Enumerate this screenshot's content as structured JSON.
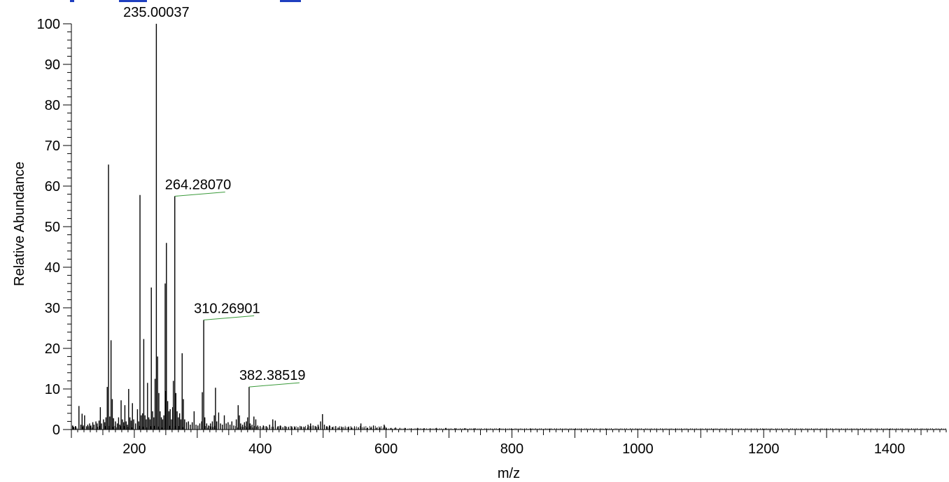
{
  "chart_data": {
    "type": "bar",
    "xlabel": "m/z",
    "ylabel": "Relative Abundance",
    "xlim": [
      100,
      1490
    ],
    "ylim": [
      0,
      100
    ],
    "x_ticks": [
      200,
      400,
      600,
      800,
      1000,
      1200,
      1400
    ],
    "y_ticks": [
      0,
      10,
      20,
      30,
      40,
      50,
      60,
      70,
      80,
      90,
      100
    ],
    "grid": false,
    "peaks": [
      [
        102,
        1.0
      ],
      [
        104,
        0.6
      ],
      [
        107,
        0.8
      ],
      [
        112,
        5.8
      ],
      [
        115,
        1.2
      ],
      [
        117,
        3.9
      ],
      [
        119,
        1.0
      ],
      [
        121,
        3.5
      ],
      [
        124,
        0.8
      ],
      [
        126,
        1.2
      ],
      [
        129,
        1.5
      ],
      [
        131,
        1.0
      ],
      [
        134,
        1.8
      ],
      [
        136,
        1.2
      ],
      [
        139,
        2.0
      ],
      [
        141,
        1.5
      ],
      [
        144,
        2.2
      ],
      [
        146,
        5.5
      ],
      [
        148,
        1.5
      ],
      [
        151,
        2.5
      ],
      [
        153,
        1.8
      ],
      [
        155,
        3.0
      ],
      [
        157,
        10.5
      ],
      [
        159,
        65.3
      ],
      [
        161,
        3.2
      ],
      [
        163,
        22.0
      ],
      [
        165,
        7.5
      ],
      [
        167,
        2.8
      ],
      [
        170,
        2.0
      ],
      [
        173,
        1.5
      ],
      [
        175,
        3.0
      ],
      [
        177,
        1.2
      ],
      [
        179,
        7.2
      ],
      [
        181,
        2.5
      ],
      [
        183,
        1.8
      ],
      [
        185,
        6.0
      ],
      [
        187,
        2.0
      ],
      [
        189,
        1.2
      ],
      [
        191,
        10.0
      ],
      [
        193,
        3.0
      ],
      [
        195,
        2.2
      ],
      [
        197,
        6.5
      ],
      [
        199,
        2.5
      ],
      [
        202,
        1.5
      ],
      [
        205,
        5.0
      ],
      [
        207,
        2.0
      ],
      [
        209,
        57.8
      ],
      [
        211,
        3.5
      ],
      [
        213,
        4.0
      ],
      [
        215,
        22.3
      ],
      [
        217,
        3.5
      ],
      [
        219,
        2.5
      ],
      [
        221,
        11.5
      ],
      [
        223,
        3.0
      ],
      [
        225,
        2.5
      ],
      [
        227,
        35.0
      ],
      [
        229,
        4.5
      ],
      [
        231,
        3.0
      ],
      [
        233,
        12.5
      ],
      [
        235.00037,
        100.0
      ],
      [
        237,
        18.0
      ],
      [
        239,
        9.0
      ],
      [
        241,
        4.5
      ],
      [
        243,
        3.0
      ],
      [
        245,
        2.5
      ],
      [
        247,
        3.5
      ],
      [
        249,
        36.0
      ],
      [
        250,
        9.5
      ],
      [
        251,
        46.0
      ],
      [
        253,
        7.0
      ],
      [
        255,
        4.5
      ],
      [
        257,
        5.0
      ],
      [
        259,
        2.5
      ],
      [
        261,
        5.5
      ],
      [
        262,
        12.0
      ],
      [
        264.2807,
        57.5
      ],
      [
        266,
        9.0
      ],
      [
        268,
        4.5
      ],
      [
        270,
        3.0
      ],
      [
        272,
        4.0
      ],
      [
        274,
        2.5
      ],
      [
        276,
        18.8
      ],
      [
        278,
        7.5
      ],
      [
        280,
        2.5
      ],
      [
        283,
        1.8
      ],
      [
        286,
        2.0
      ],
      [
        289,
        1.2
      ],
      [
        292,
        1.8
      ],
      [
        295,
        4.5
      ],
      [
        298,
        1.2
      ],
      [
        301,
        1.0
      ],
      [
        304,
        1.5
      ],
      [
        307,
        2.0
      ],
      [
        308,
        9.2
      ],
      [
        310.26901,
        27.0
      ],
      [
        312,
        3.0
      ],
      [
        315,
        1.5
      ],
      [
        318,
        1.0
      ],
      [
        321,
        1.5
      ],
      [
        324,
        2.0
      ],
      [
        327,
        3.5
      ],
      [
        329,
        10.3
      ],
      [
        331,
        2.0
      ],
      [
        334,
        4.2
      ],
      [
        337,
        1.5
      ],
      [
        340,
        1.2
      ],
      [
        343,
        3.5
      ],
      [
        346,
        1.5
      ],
      [
        349,
        1.8
      ],
      [
        352,
        1.2
      ],
      [
        355,
        2.0
      ],
      [
        358,
        1.0
      ],
      [
        362,
        2.5
      ],
      [
        365,
        6.0
      ],
      [
        367,
        3.5
      ],
      [
        369,
        1.5
      ],
      [
        372,
        1.2
      ],
      [
        375,
        1.8
      ],
      [
        378,
        2.0
      ],
      [
        380,
        3.0
      ],
      [
        382.38519,
        10.5
      ],
      [
        384,
        1.5
      ],
      [
        387,
        1.2
      ],
      [
        390,
        3.2
      ],
      [
        393,
        2.5
      ],
      [
        396,
        1.0
      ],
      [
        400,
        0.8
      ],
      [
        405,
        1.0
      ],
      [
        410,
        0.8
      ],
      [
        415,
        1.2
      ],
      [
        420,
        2.5
      ],
      [
        424,
        2.2
      ],
      [
        428,
        0.8
      ],
      [
        432,
        1.0
      ],
      [
        436,
        0.6
      ],
      [
        440,
        0.8
      ],
      [
        445,
        0.6
      ],
      [
        450,
        0.8
      ],
      [
        455,
        0.6
      ],
      [
        460,
        0.6
      ],
      [
        465,
        0.8
      ],
      [
        470,
        0.6
      ],
      [
        476,
        1.2
      ],
      [
        480,
        1.5
      ],
      [
        484,
        1.0
      ],
      [
        488,
        0.8
      ],
      [
        492,
        1.2
      ],
      [
        496,
        2.0
      ],
      [
        499,
        3.8
      ],
      [
        502,
        1.2
      ],
      [
        506,
        0.8
      ],
      [
        510,
        1.0
      ],
      [
        515,
        0.6
      ],
      [
        520,
        0.8
      ],
      [
        525,
        0.5
      ],
      [
        530,
        0.6
      ],
      [
        535,
        0.5
      ],
      [
        540,
        0.6
      ],
      [
        545,
        0.5
      ],
      [
        550,
        0.6
      ],
      [
        556,
        0.5
      ],
      [
        560,
        1.5
      ],
      [
        565,
        0.5
      ],
      [
        570,
        0.4
      ],
      [
        576,
        0.5
      ],
      [
        580,
        1.0
      ],
      [
        585,
        0.4
      ],
      [
        590,
        0.5
      ],
      [
        597,
        1.2
      ],
      [
        600,
        0.5
      ],
      [
        608,
        0.4
      ],
      [
        615,
        0.5
      ],
      [
        622,
        0.4
      ],
      [
        630,
        0.4
      ],
      [
        640,
        0.3
      ],
      [
        650,
        0.4
      ],
      [
        660,
        0.3
      ],
      [
        670,
        0.3
      ],
      [
        680,
        0.4
      ],
      [
        695,
        0.4
      ],
      [
        710,
        0.3
      ],
      [
        725,
        0.3
      ],
      [
        740,
        0.3
      ],
      [
        760,
        0.2
      ],
      [
        780,
        0.3
      ],
      [
        800,
        0.2
      ],
      [
        830,
        0.2
      ],
      [
        860,
        0.2
      ],
      [
        900,
        0.2
      ],
      [
        950,
        0.2
      ],
      [
        1000,
        0.2
      ],
      [
        1060,
        0.2
      ],
      [
        1120,
        0.2
      ],
      [
        1200,
        0.2
      ],
      [
        1300,
        0.2
      ],
      [
        1400,
        0.2
      ]
    ],
    "annotations": [
      {
        "x": 235.00037,
        "y": 100.0,
        "text": "235.00037",
        "leader": false
      },
      {
        "x": 264.2807,
        "y": 57.5,
        "text": "264.28070",
        "leader": true
      },
      {
        "x": 310.26901,
        "y": 27.0,
        "text": "310.26901",
        "leader": true
      },
      {
        "x": 382.38519,
        "y": 10.5,
        "text": "382.38519",
        "leader": true
      }
    ],
    "colors": {
      "peaks": "#000000",
      "leader": "#3a9a3a",
      "top_strip": "#1f3fbf"
    }
  }
}
